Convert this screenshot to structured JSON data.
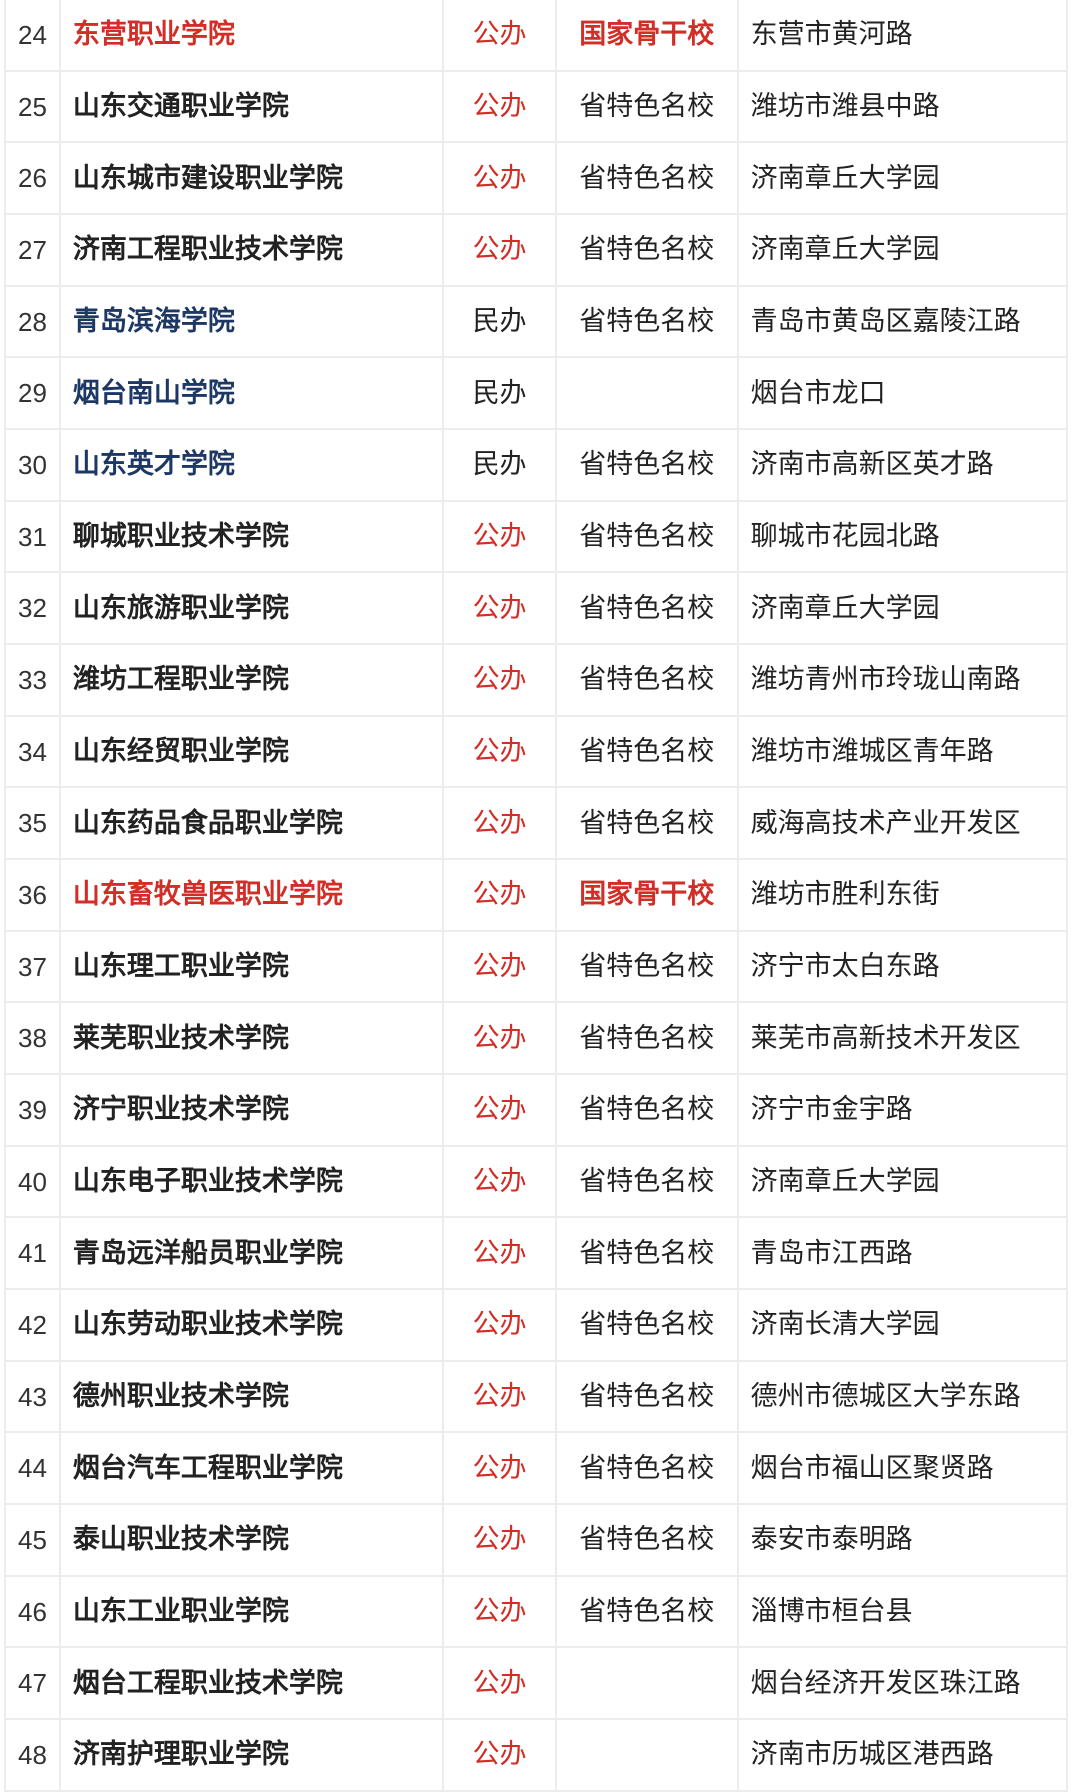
{
  "colors": {
    "red": "#d22d26",
    "blue": "#1e3866",
    "black": "#222222",
    "number_gray": "#333333",
    "border": "#ececec",
    "background": "#ffffff"
  },
  "table": {
    "columns": [
      {
        "key": "num",
        "name": "rank"
      },
      {
        "key": "name",
        "name": "school-name"
      },
      {
        "key": "type",
        "name": "ownership"
      },
      {
        "key": "title",
        "name": "designation"
      },
      {
        "key": "address",
        "name": "address"
      }
    ],
    "rows": [
      {
        "num": "24",
        "name": "东营职业学院",
        "name_color": "red",
        "name_bold": true,
        "type": "公办",
        "type_color": "red",
        "title": "国家骨干校",
        "title_color": "red",
        "title_bold": true,
        "address": "东营市黄河路"
      },
      {
        "num": "25",
        "name": "山东交通职业学院",
        "name_color": "black",
        "name_bold": true,
        "type": "公办",
        "type_color": "red",
        "title": "省特色名校",
        "title_color": "black",
        "title_bold": false,
        "address": "潍坊市潍县中路"
      },
      {
        "num": "26",
        "name": "山东城市建设职业学院",
        "name_color": "black",
        "name_bold": true,
        "type": "公办",
        "type_color": "red",
        "title": "省特色名校",
        "title_color": "black",
        "title_bold": false,
        "address": "济南章丘大学园"
      },
      {
        "num": "27",
        "name": "济南工程职业技术学院",
        "name_color": "black",
        "name_bold": true,
        "type": "公办",
        "type_color": "red",
        "title": "省特色名校",
        "title_color": "black",
        "title_bold": false,
        "address": "济南章丘大学园"
      },
      {
        "num": "28",
        "name": "青岛滨海学院",
        "name_color": "blue",
        "name_bold": true,
        "type": "民办",
        "type_color": "black",
        "title": "省特色名校",
        "title_color": "black",
        "title_bold": false,
        "address": "青岛市黄岛区嘉陵江路"
      },
      {
        "num": "29",
        "name": "烟台南山学院",
        "name_color": "blue",
        "name_bold": true,
        "type": "民办",
        "type_color": "black",
        "title": "",
        "title_color": "black",
        "title_bold": false,
        "address": "烟台市龙口"
      },
      {
        "num": "30",
        "name": "山东英才学院",
        "name_color": "blue",
        "name_bold": true,
        "type": "民办",
        "type_color": "black",
        "title": "省特色名校",
        "title_color": "black",
        "title_bold": false,
        "address": "济南市高新区英才路"
      },
      {
        "num": "31",
        "name": "聊城职业技术学院",
        "name_color": "black",
        "name_bold": true,
        "type": "公办",
        "type_color": "red",
        "title": "省特色名校",
        "title_color": "black",
        "title_bold": false,
        "address": "聊城市花园北路"
      },
      {
        "num": "32",
        "name": "山东旅游职业学院",
        "name_color": "black",
        "name_bold": true,
        "type": "公办",
        "type_color": "red",
        "title": "省特色名校",
        "title_color": "black",
        "title_bold": false,
        "address": "济南章丘大学园"
      },
      {
        "num": "33",
        "name": "潍坊工程职业学院",
        "name_color": "black",
        "name_bold": true,
        "type": "公办",
        "type_color": "red",
        "title": "省特色名校",
        "title_color": "black",
        "title_bold": false,
        "address": "潍坊青州市玲珑山南路"
      },
      {
        "num": "34",
        "name": "山东经贸职业学院",
        "name_color": "black",
        "name_bold": true,
        "type": "公办",
        "type_color": "red",
        "title": "省特色名校",
        "title_color": "black",
        "title_bold": false,
        "address": "潍坊市潍城区青年路"
      },
      {
        "num": "35",
        "name": "山东药品食品职业学院",
        "name_color": "black",
        "name_bold": true,
        "type": "公办",
        "type_color": "red",
        "title": "省特色名校",
        "title_color": "black",
        "title_bold": false,
        "address": "威海高技术产业开发区"
      },
      {
        "num": "36",
        "name": "山东畜牧兽医职业学院",
        "name_color": "red",
        "name_bold": true,
        "type": "公办",
        "type_color": "red",
        "title": "国家骨干校",
        "title_color": "red",
        "title_bold": true,
        "address": "潍坊市胜利东街"
      },
      {
        "num": "37",
        "name": "山东理工职业学院",
        "name_color": "black",
        "name_bold": true,
        "type": "公办",
        "type_color": "red",
        "title": "省特色名校",
        "title_color": "black",
        "title_bold": false,
        "address": "济宁市太白东路"
      },
      {
        "num": "38",
        "name": "莱芜职业技术学院",
        "name_color": "black",
        "name_bold": true,
        "type": "公办",
        "type_color": "red",
        "title": "省特色名校",
        "title_color": "black",
        "title_bold": false,
        "address": "莱芜市高新技术开发区"
      },
      {
        "num": "39",
        "name": "济宁职业技术学院",
        "name_color": "black",
        "name_bold": true,
        "type": "公办",
        "type_color": "red",
        "title": "省特色名校",
        "title_color": "black",
        "title_bold": false,
        "address": "济宁市金宇路"
      },
      {
        "num": "40",
        "name": "山东电子职业技术学院",
        "name_color": "black",
        "name_bold": true,
        "type": "公办",
        "type_color": "red",
        "title": "省特色名校",
        "title_color": "black",
        "title_bold": false,
        "address": "济南章丘大学园"
      },
      {
        "num": "41",
        "name": "青岛远洋船员职业学院",
        "name_color": "black",
        "name_bold": true,
        "type": "公办",
        "type_color": "red",
        "title": "省特色名校",
        "title_color": "black",
        "title_bold": false,
        "address": "青岛市江西路"
      },
      {
        "num": "42",
        "name": "山东劳动职业技术学院",
        "name_color": "black",
        "name_bold": true,
        "type": "公办",
        "type_color": "red",
        "title": "省特色名校",
        "title_color": "black",
        "title_bold": false,
        "address": "济南长清大学园"
      },
      {
        "num": "43",
        "name": "德州职业技术学院",
        "name_color": "black",
        "name_bold": true,
        "type": "公办",
        "type_color": "red",
        "title": "省特色名校",
        "title_color": "black",
        "title_bold": false,
        "address": "德州市德城区大学东路"
      },
      {
        "num": "44",
        "name": "烟台汽车工程职业学院",
        "name_color": "black",
        "name_bold": true,
        "type": "公办",
        "type_color": "red",
        "title": "省特色名校",
        "title_color": "black",
        "title_bold": false,
        "address": "烟台市福山区聚贤路"
      },
      {
        "num": "45",
        "name": "泰山职业技术学院",
        "name_color": "black",
        "name_bold": true,
        "type": "公办",
        "type_color": "red",
        "title": "省特色名校",
        "title_color": "black",
        "title_bold": false,
        "address": "泰安市泰明路"
      },
      {
        "num": "46",
        "name": "山东工业职业学院",
        "name_color": "black",
        "name_bold": true,
        "type": "公办",
        "type_color": "red",
        "title": "省特色名校",
        "title_color": "black",
        "title_bold": false,
        "address": "淄博市桓台县"
      },
      {
        "num": "47",
        "name": "烟台工程职业技术学院",
        "name_color": "black",
        "name_bold": true,
        "type": "公办",
        "type_color": "red",
        "title": "",
        "title_color": "black",
        "title_bold": false,
        "address": "烟台经济开发区珠江路"
      },
      {
        "num": "48",
        "name": "济南护理职业学院",
        "name_color": "black",
        "name_bold": true,
        "type": "公办",
        "type_color": "red",
        "title": "",
        "title_color": "black",
        "title_bold": false,
        "address": "济南市历城区港西路"
      }
    ]
  }
}
